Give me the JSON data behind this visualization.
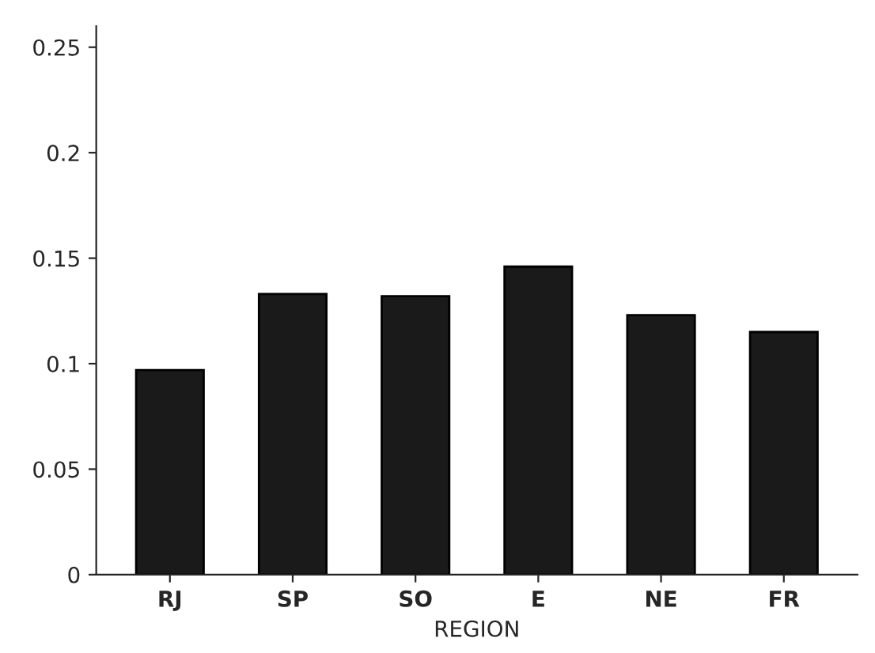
{
  "chart_data": {
    "type": "bar",
    "xlabel": "REGION",
    "categories": [
      "RJ",
      "SP",
      "SO",
      "E",
      "NE",
      "FR"
    ],
    "values": [
      0.097,
      0.133,
      0.132,
      0.146,
      0.123,
      0.115
    ],
    "color": "#1a1a1a",
    "ylim": [
      0,
      0.26
    ],
    "yticks": [
      0,
      0.05,
      0.1,
      0.15,
      0.2,
      0.25
    ],
    "grid": false
  }
}
